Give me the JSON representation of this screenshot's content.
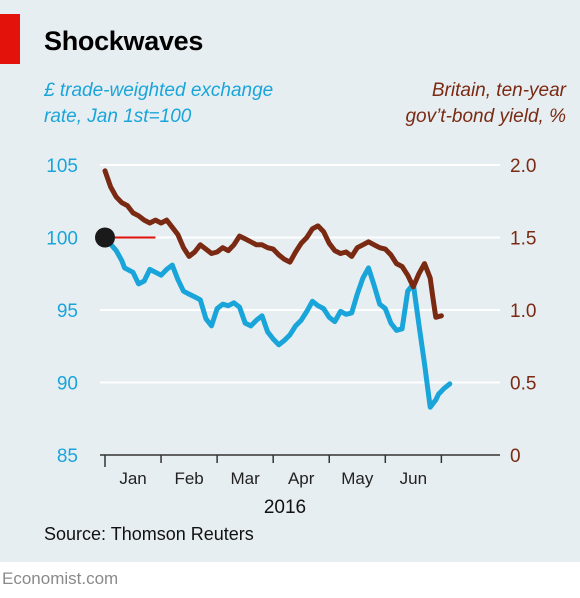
{
  "title": "Shockwaves",
  "subtitle_left": [
    "£ trade-weighted exchange",
    "rate, Jan 1st=100"
  ],
  "subtitle_right": [
    "Britain, ten-year",
    "gov’t-bond yield, %"
  ],
  "source": "Source: Thomson Reuters",
  "footer": "Economist.com",
  "colors": {
    "background": "#e7eef2",
    "accent_red": "#e3120b",
    "fx_series": "#1aa5da",
    "bond_series": "#7a2a12",
    "grid": "#ffffff",
    "marker": "#1a1a1a"
  },
  "chart_data": {
    "type": "line",
    "year_label": "2016",
    "x_ticks": [
      "Jan",
      "Feb",
      "Mar",
      "Apr",
      "May",
      "Jun"
    ],
    "xlim": [
      0,
      6.6
    ],
    "left_axis": {
      "ticks": [
        "85",
        "90",
        "95",
        "100",
        "105"
      ],
      "ylim": [
        85,
        105
      ]
    },
    "right_axis": {
      "ticks": [
        "0",
        "0.5",
        "1.0",
        "1.5",
        "2.0"
      ],
      "ylim": [
        0,
        2.0
      ]
    },
    "grid": true,
    "series": [
      {
        "axis": "left",
        "color": "#1aa5da",
        "x": [
          0,
          0.2,
          0.3,
          0.35,
          0.5,
          0.6,
          0.7,
          0.8,
          0.9,
          1.0,
          1.1,
          1.2,
          1.3,
          1.4,
          1.5,
          1.6,
          1.7,
          1.8,
          1.9,
          2.0,
          2.1,
          2.2,
          2.3,
          2.4,
          2.5,
          2.6,
          2.7,
          2.8,
          2.9,
          3.0,
          3.1,
          3.2,
          3.3,
          3.4,
          3.5,
          3.6,
          3.7,
          3.8,
          3.9,
          4.0,
          4.1,
          4.2,
          4.3,
          4.4,
          4.5,
          4.6,
          4.7,
          4.8,
          4.9,
          5.0,
          5.1,
          5.2,
          5.3,
          5.4,
          5.5,
          5.6,
          5.7,
          5.8,
          5.9,
          5.95,
          6.05,
          6.15
        ],
        "values": [
          100,
          99.1,
          98.4,
          97.9,
          97.6,
          96.8,
          97.0,
          97.8,
          97.6,
          97.4,
          97.8,
          98.1,
          97.1,
          96.3,
          96.1,
          95.9,
          95.7,
          94.4,
          93.9,
          95.1,
          95.4,
          95.3,
          95.5,
          95.2,
          94.1,
          93.9,
          94.3,
          94.6,
          93.5,
          93.0,
          92.6,
          92.9,
          93.3,
          93.9,
          94.3,
          94.9,
          95.6,
          95.3,
          95.1,
          94.5,
          94.2,
          94.9,
          94.7,
          94.8,
          96.1,
          97.2,
          97.9,
          96.7,
          95.4,
          95.1,
          94.1,
          93.6,
          93.7,
          96.3,
          96.8,
          94.0,
          91.3,
          88.3,
          88.8,
          89.2,
          89.6,
          89.9
        ]
      },
      {
        "axis": "right",
        "color": "#7a2a12",
        "x": [
          0,
          0.1,
          0.2,
          0.3,
          0.4,
          0.5,
          0.6,
          0.7,
          0.8,
          0.9,
          1.0,
          1.1,
          1.2,
          1.3,
          1.4,
          1.5,
          1.6,
          1.7,
          1.8,
          1.9,
          2.0,
          2.1,
          2.2,
          2.3,
          2.4,
          2.5,
          2.6,
          2.7,
          2.8,
          2.9,
          3.0,
          3.1,
          3.2,
          3.3,
          3.4,
          3.5,
          3.6,
          3.7,
          3.8,
          3.9,
          4.0,
          4.1,
          4.2,
          4.3,
          4.4,
          4.5,
          4.6,
          4.7,
          4.8,
          4.9,
          5.0,
          5.1,
          5.2,
          5.3,
          5.4,
          5.5,
          5.6,
          5.7,
          5.8,
          5.85,
          5.9,
          6.0
        ],
        "values": [
          1.96,
          1.85,
          1.78,
          1.74,
          1.72,
          1.67,
          1.65,
          1.62,
          1.6,
          1.62,
          1.6,
          1.62,
          1.57,
          1.52,
          1.43,
          1.37,
          1.4,
          1.45,
          1.42,
          1.39,
          1.4,
          1.43,
          1.41,
          1.45,
          1.51,
          1.49,
          1.47,
          1.45,
          1.45,
          1.43,
          1.42,
          1.38,
          1.35,
          1.33,
          1.4,
          1.46,
          1.5,
          1.56,
          1.58,
          1.54,
          1.46,
          1.41,
          1.39,
          1.4,
          1.37,
          1.43,
          1.45,
          1.47,
          1.45,
          1.43,
          1.42,
          1.38,
          1.32,
          1.3,
          1.24,
          1.16,
          1.25,
          1.32,
          1.22,
          1.08,
          0.95,
          0.96
        ]
      }
    ]
  }
}
